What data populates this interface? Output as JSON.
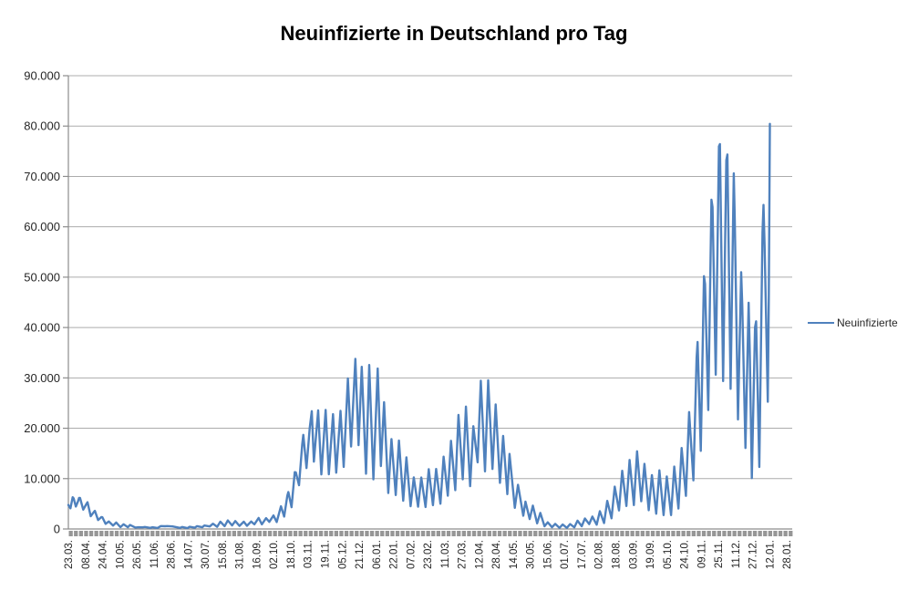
{
  "title": "Neuinfizierte in Deutschland pro Tag",
  "legend": {
    "label": "Neuinfizierte"
  },
  "colors": {
    "series": "#4F81BD",
    "gridline": "#ACACAC",
    "axis": "#8C8C8C",
    "tick_dash": "#969696",
    "label_text": "#262626",
    "title_text": "#000000",
    "background": "#FFFFFF"
  },
  "chart_data": {
    "type": "line",
    "title": "Neuinfizierte in Deutschland pro Tag",
    "legend_position": "right",
    "grid": "horizontal",
    "y_axis": {
      "range": [
        0,
        90000
      ],
      "tick_values": [
        0,
        10000,
        20000,
        30000,
        40000,
        50000,
        60000,
        70000,
        80000,
        90000
      ],
      "tick_labels": [
        "0",
        "10.000",
        "20.000",
        "30.000",
        "40.000",
        "50.000",
        "60.000",
        "70.000",
        "80.000",
        "90.000"
      ]
    },
    "x_axis": {
      "domain_days": [
        0,
        681
      ],
      "label_step_days": 16.095,
      "tick_labels": [
        "23.03.",
        "08.04.",
        "24.04.",
        "10.05.",
        "26.05.",
        "11.06.",
        "28.06.",
        "14.07.",
        "30.07.",
        "15.08.",
        "31.08.",
        "16.09.",
        "02.10.",
        "18.10.",
        "03.11.",
        "19.11.",
        "05.12.",
        "21.12.",
        "06.01.",
        "22.01.",
        "07.02.",
        "23.02.",
        "11.03.",
        "27.03.",
        "12.04.",
        "28.04.",
        "14.05.",
        "30.05.",
        "15.06.",
        "01.07.",
        "17.07.",
        "02.08.",
        "18.08.",
        "03.09.",
        "19.09.",
        "05.10.",
        "24.10.",
        "09.11.",
        "25.11.",
        "11.12.",
        "27.12.",
        "12.01.",
        "28.01."
      ]
    },
    "series": [
      {
        "name": "Neuinfizierte",
        "color": "#4F81BD",
        "points": [
          [
            0,
            4764
          ],
          [
            2,
            4118
          ],
          [
            4,
            6294
          ],
          [
            5,
            6082
          ],
          [
            7,
            4450
          ],
          [
            9,
            5453
          ],
          [
            10,
            6156
          ],
          [
            11,
            6174
          ],
          [
            14,
            3834
          ],
          [
            17,
            4974
          ],
          [
            18,
            5323
          ],
          [
            21,
            2537
          ],
          [
            24,
            3380
          ],
          [
            25,
            3609
          ],
          [
            28,
            1775
          ],
          [
            31,
            2352
          ],
          [
            32,
            2337
          ],
          [
            35,
            1018
          ],
          [
            38,
            1478
          ],
          [
            42,
            679
          ],
          [
            45,
            1284
          ],
          [
            49,
            357
          ],
          [
            52,
            933
          ],
          [
            56,
            342
          ],
          [
            58,
            797
          ],
          [
            63,
            289
          ],
          [
            66,
            353
          ],
          [
            70,
            333
          ],
          [
            72,
            394
          ],
          [
            77,
            214
          ],
          [
            79,
            350
          ],
          [
            84,
            192
          ],
          [
            87,
            580
          ],
          [
            91,
            537
          ],
          [
            93,
            587
          ],
          [
            98,
            498
          ],
          [
            105,
            219
          ],
          [
            107,
            390
          ],
          [
            112,
            159
          ],
          [
            114,
            429
          ],
          [
            119,
            249
          ],
          [
            121,
            569
          ],
          [
            126,
            340
          ],
          [
            128,
            684
          ],
          [
            133,
            509
          ],
          [
            136,
            1045
          ],
          [
            140,
            436
          ],
          [
            143,
            1445
          ],
          [
            147,
            561
          ],
          [
            150,
            1707
          ],
          [
            154,
            711
          ],
          [
            157,
            1571
          ],
          [
            161,
            610
          ],
          [
            165,
            1453
          ],
          [
            168,
            633
          ],
          [
            172,
            1484
          ],
          [
            175,
            927
          ],
          [
            179,
            2194
          ],
          [
            182,
            922
          ],
          [
            186,
            2153
          ],
          [
            189,
            1411
          ],
          [
            193,
            2673
          ],
          [
            196,
            1382
          ],
          [
            200,
            4516
          ],
          [
            203,
            2467
          ],
          [
            206,
            6638
          ],
          [
            207,
            7334
          ],
          [
            210,
            4325
          ],
          [
            213,
            11287
          ],
          [
            214,
            11242
          ],
          [
            217,
            8685
          ],
          [
            220,
            16774
          ],
          [
            221,
            18681
          ],
          [
            224,
            12097
          ],
          [
            227,
            19990
          ],
          [
            229,
            23399
          ],
          [
            231,
            13363
          ],
          [
            235,
            23542
          ],
          [
            238,
            10824
          ],
          [
            242,
            23648
          ],
          [
            245,
            10864
          ],
          [
            249,
            22806
          ],
          [
            252,
            11169
          ],
          [
            256,
            23449
          ],
          [
            259,
            12332
          ],
          [
            263,
            29875
          ],
          [
            266,
            16362
          ],
          [
            270,
            33777
          ],
          [
            273,
            16643
          ],
          [
            276,
            32195
          ],
          [
            280,
            10976
          ],
          [
            283,
            32552
          ],
          [
            287,
            9847
          ],
          [
            291,
            31849
          ],
          [
            294,
            12497
          ],
          [
            297,
            25164
          ],
          [
            301,
            7141
          ],
          [
            304,
            17862
          ],
          [
            308,
            6729
          ],
          [
            311,
            17553
          ],
          [
            315,
            5608
          ],
          [
            318,
            14211
          ],
          [
            322,
            4535
          ],
          [
            325,
            10237
          ],
          [
            329,
            4426
          ],
          [
            332,
            10207
          ],
          [
            336,
            4369
          ],
          [
            339,
            11869
          ],
          [
            343,
            4732
          ],
          [
            346,
            11912
          ],
          [
            350,
            5011
          ],
          [
            353,
            14356
          ],
          [
            357,
            6604
          ],
          [
            360,
            17504
          ],
          [
            364,
            7709
          ],
          [
            367,
            22657
          ],
          [
            371,
            9872
          ],
          [
            374,
            24300
          ],
          [
            378,
            8497
          ],
          [
            381,
            20407
          ],
          [
            385,
            13245
          ],
          [
            388,
            29426
          ],
          [
            392,
            11437
          ],
          [
            395,
            29518
          ],
          [
            399,
            11907
          ],
          [
            402,
            24736
          ],
          [
            406,
            9160
          ],
          [
            409,
            18485
          ],
          [
            413,
            6922
          ],
          [
            415,
            14909
          ],
          [
            420,
            4209
          ],
          [
            423,
            8769
          ],
          [
            428,
            2626
          ],
          [
            430,
            5426
          ],
          [
            434,
            1978
          ],
          [
            437,
            4640
          ],
          [
            441,
            1117
          ],
          [
            444,
            3187
          ],
          [
            448,
            549
          ],
          [
            451,
            1330
          ],
          [
            455,
            346
          ],
          [
            458,
            1008
          ],
          [
            462,
            219
          ],
          [
            465,
            892
          ],
          [
            469,
            212
          ],
          [
            472,
            970
          ],
          [
            476,
            324
          ],
          [
            479,
            1642
          ],
          [
            483,
            546
          ],
          [
            486,
            2089
          ],
          [
            490,
            958
          ],
          [
            493,
            2454
          ],
          [
            497,
            847
          ],
          [
            500,
            3539
          ],
          [
            504,
            1183
          ],
          [
            507,
            5578
          ],
          [
            511,
            2126
          ],
          [
            514,
            8400
          ],
          [
            518,
            3668
          ],
          [
            521,
            11561
          ],
          [
            525,
            4559
          ],
          [
            528,
            13715
          ],
          [
            532,
            4749
          ],
          [
            535,
            15431
          ],
          [
            539,
            5511
          ],
          [
            542,
            12925
          ],
          [
            546,
            3736
          ],
          [
            549,
            10696
          ],
          [
            553,
            3022
          ],
          [
            556,
            11644
          ],
          [
            560,
            2747
          ],
          [
            563,
            10429
          ],
          [
            567,
            2748
          ],
          [
            570,
            12382
          ],
          [
            574,
            4056
          ],
          [
            577,
            16077
          ],
          [
            581,
            6573
          ],
          [
            584,
            23212
          ],
          [
            588,
            9658
          ],
          [
            591,
            33949
          ],
          [
            592,
            37120
          ],
          [
            595,
            15513
          ],
          [
            598,
            50196
          ],
          [
            599,
            48640
          ],
          [
            602,
            23607
          ],
          [
            605,
            65371
          ],
          [
            606,
            63924
          ],
          [
            609,
            30643
          ],
          [
            612,
            75961
          ],
          [
            613,
            76414
          ],
          [
            616,
            29364
          ],
          [
            619,
            73209
          ],
          [
            620,
            74352
          ],
          [
            623,
            27836
          ],
          [
            626,
            70611
          ],
          [
            627,
            61288
          ],
          [
            630,
            21743
          ],
          [
            633,
            50968
          ],
          [
            634,
            44465
          ],
          [
            637,
            16086
          ],
          [
            640,
            44927
          ],
          [
            641,
            35431
          ],
          [
            643,
            10100
          ],
          [
            646,
            40043
          ],
          [
            647,
            41240
          ],
          [
            650,
            12315
          ],
          [
            653,
            58912
          ],
          [
            654,
            64340
          ],
          [
            655,
            56335
          ],
          [
            658,
            25255
          ],
          [
            659,
            45690
          ],
          [
            660,
            80430
          ]
        ]
      }
    ]
  }
}
